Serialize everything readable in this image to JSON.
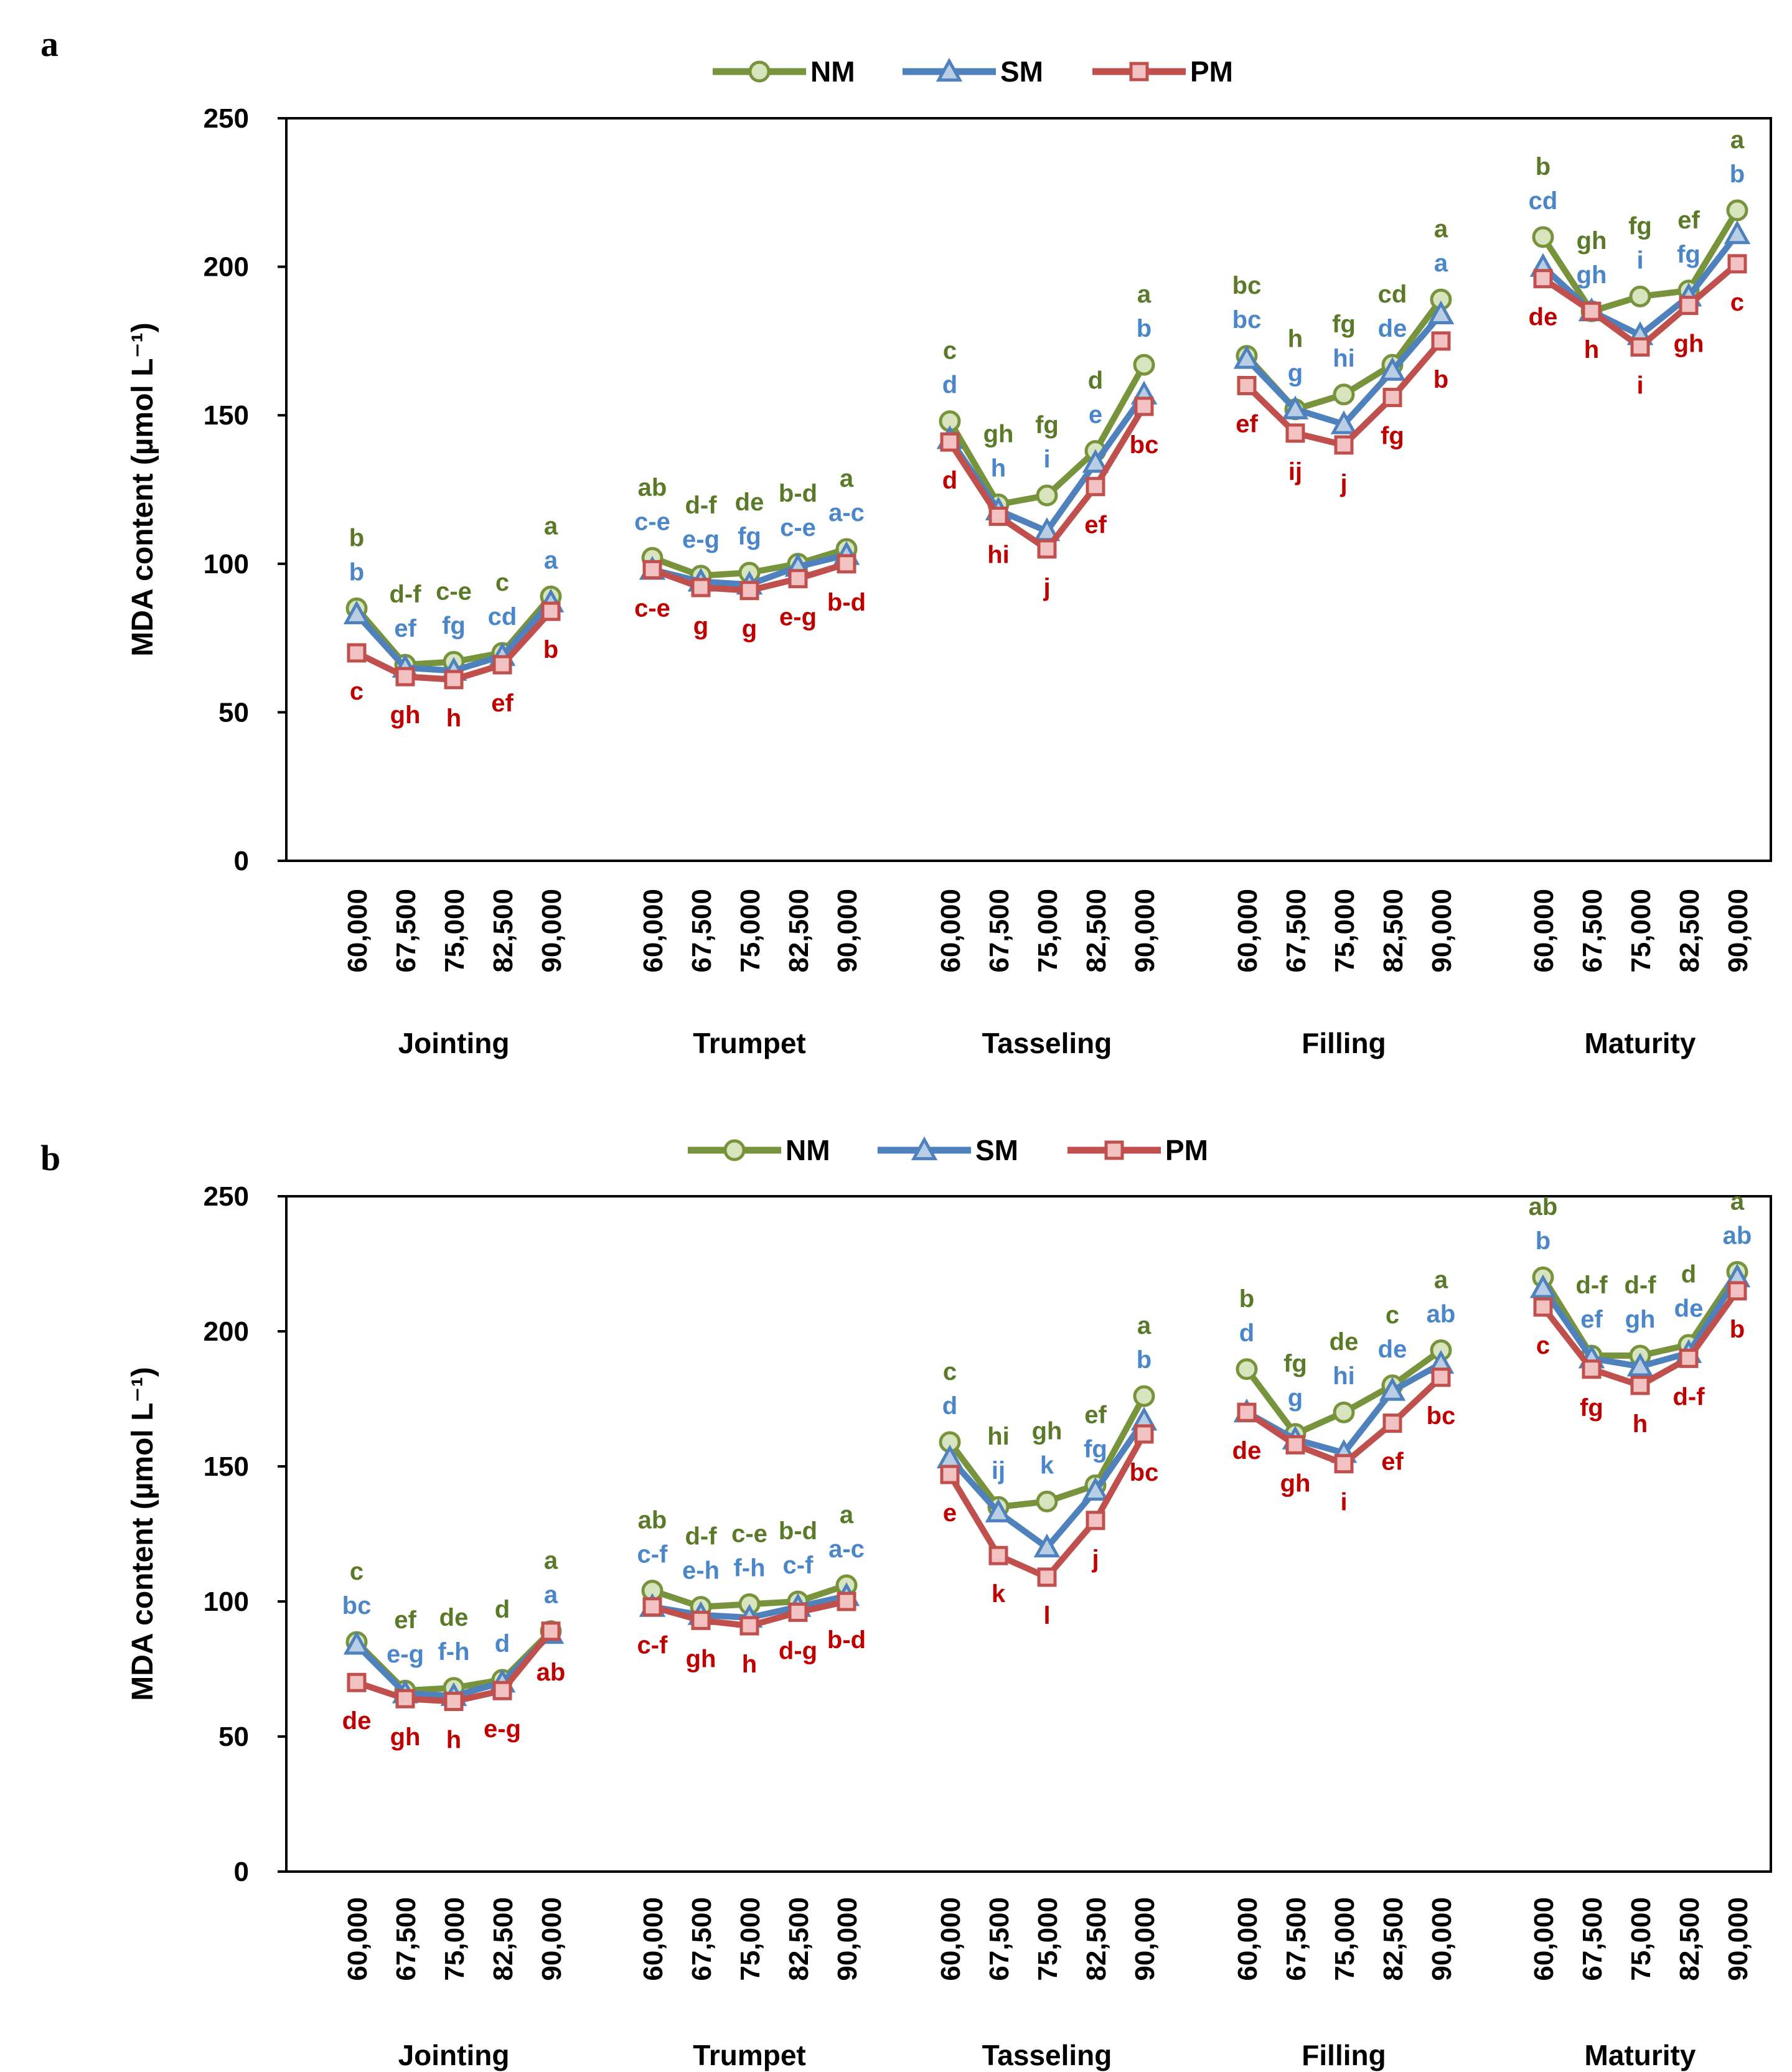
{
  "figure": {
    "colors": {
      "NM": "#77933c",
      "SM": "#4f81bd",
      "PM": "#c0504d",
      "NM_fill": "#d7e4bd",
      "SM_fill": "#b9cde5",
      "PM_fill": "#f2c2c2",
      "NM_text": "#5a7a2a",
      "SM_text": "#4a86c8",
      "PM_text": "#c00000"
    }
  },
  "chart_data": [
    {
      "panel": "a",
      "type": "line",
      "ylabel": "MDA content (µmol L⁻¹)",
      "ylim": [
        0,
        250
      ],
      "yticks": [
        0,
        50,
        100,
        150,
        200,
        250
      ],
      "groups": [
        "Jointing",
        "Trumpet",
        "Tasseling",
        "Filling",
        "Maturity"
      ],
      "categories": [
        "60,000",
        "67,500",
        "75,000",
        "82,500",
        "90,000"
      ],
      "legend": [
        "NM",
        "SM",
        "PM"
      ],
      "series": [
        {
          "name": "NM",
          "values": [
            [
              85,
              66,
              67,
              70,
              89
            ],
            [
              102,
              96,
              97,
              100,
              105
            ],
            [
              148,
              120,
              123,
              138,
              167
            ],
            [
              170,
              152,
              157,
              167,
              189
            ],
            [
              210,
              185,
              190,
              192,
              219
            ]
          ],
          "labels": [
            [
              "b",
              "d-f",
              "c-e",
              "c",
              "a"
            ],
            [
              "ab",
              "d-f",
              "de",
              "b-d",
              "a"
            ],
            [
              "c",
              "gh",
              "fg",
              "d",
              "a"
            ],
            [
              "bc",
              "h",
              "fg",
              "cd",
              "a"
            ],
            [
              "b",
              "gh",
              "fg",
              "ef",
              "a"
            ]
          ]
        },
        {
          "name": "SM",
          "values": [
            [
              83,
              65,
              64,
              69,
              87
            ],
            [
              98,
              94,
              93,
              99,
              103
            ],
            [
              142,
              118,
              111,
              134,
              157
            ],
            [
              169,
              152,
              147,
              165,
              184
            ],
            [
              200,
              185,
              177,
              190,
              211
            ]
          ],
          "labels": [
            [
              "b",
              "ef",
              "fg",
              "cd",
              "a"
            ],
            [
              "c-e",
              "e-g",
              "fg",
              "c-e",
              "a-c"
            ],
            [
              "d",
              "h",
              "i",
              "e",
              "b"
            ],
            [
              "bc",
              "g",
              "hi",
              "de",
              "a"
            ],
            [
              "cd",
              "gh",
              "i",
              "fg",
              "b"
            ]
          ]
        },
        {
          "name": "PM",
          "values": [
            [
              70,
              62,
              61,
              66,
              84
            ],
            [
              98,
              92,
              91,
              95,
              100
            ],
            [
              141,
              116,
              105,
              126,
              153
            ],
            [
              160,
              144,
              140,
              156,
              175
            ],
            [
              196,
              185,
              173,
              187,
              201
            ]
          ],
          "labels": [
            [
              "c",
              "gh",
              "h",
              "ef",
              "b"
            ],
            [
              "c-e",
              "g",
              "g",
              "e-g",
              "b-d"
            ],
            [
              "d",
              "hi",
              "j",
              "ef",
              "bc"
            ],
            [
              "ef",
              "ij",
              "j",
              "fg",
              "b"
            ],
            [
              "de",
              "h",
              "i",
              "gh",
              "c"
            ]
          ]
        }
      ]
    },
    {
      "panel": "b",
      "type": "line",
      "ylabel": "MDA content (µmol L⁻¹)",
      "ylim": [
        0,
        250
      ],
      "yticks": [
        0,
        50,
        100,
        150,
        200,
        250
      ],
      "groups": [
        "Jointing",
        "Trumpet",
        "Tasseling",
        "Filling",
        "Maturity"
      ],
      "categories": [
        "60,000",
        "67,500",
        "75,000",
        "82,500",
        "90,000"
      ],
      "legend": [
        "NM",
        "SM",
        "PM"
      ],
      "series": [
        {
          "name": "NM",
          "values": [
            [
              85,
              67,
              68,
              71,
              89
            ],
            [
              104,
              98,
              99,
              100,
              106
            ],
            [
              159,
              135,
              137,
              143,
              176
            ],
            [
              186,
              162,
              170,
              180,
              193
            ],
            [
              220,
              191,
              191,
              195,
              222
            ]
          ],
          "labels": [
            [
              "c",
              "ef",
              "de",
              "d",
              "a"
            ],
            [
              "ab",
              "d-f",
              "c-e",
              "b-d",
              "a"
            ],
            [
              "c",
              "hi",
              "gh",
              "ef",
              "a"
            ],
            [
              "b",
              "fg",
              "de",
              "c",
              "a"
            ],
            [
              "ab",
              "d-f",
              "d-f",
              "d",
              "a"
            ]
          ]
        },
        {
          "name": "SM",
          "values": [
            [
              84,
              66,
              65,
              70,
              88
            ],
            [
              98,
              95,
              94,
              98,
              102
            ],
            [
              153,
              133,
              120,
              141,
              167
            ],
            [
              170,
              160,
              155,
              178,
              188
            ],
            [
              216,
              190,
              187,
              192,
              220
            ]
          ],
          "labels": [
            [
              "bc",
              "e-g",
              "f-h",
              "d",
              "a"
            ],
            [
              "c-f",
              "e-h",
              "f-h",
              "c-f",
              "a-c"
            ],
            [
              "d",
              "ij",
              "k",
              "fg",
              "b"
            ],
            [
              "d",
              "g",
              "hi",
              "de",
              "ab"
            ],
            [
              "b",
              "ef",
              "gh",
              "de",
              "ab"
            ]
          ]
        },
        {
          "name": "PM",
          "values": [
            [
              70,
              64,
              63,
              67,
              89
            ],
            [
              98,
              93,
              91,
              96,
              100
            ],
            [
              147,
              117,
              109,
              130,
              162
            ],
            [
              170,
              158,
              151,
              166,
              183
            ],
            [
              209,
              186,
              180,
              190,
              215
            ]
          ],
          "labels": [
            [
              "de",
              "gh",
              "h",
              "e-g",
              "ab"
            ],
            [
              "c-f",
              "gh",
              "h",
              "d-g",
              "b-d"
            ],
            [
              "e",
              "k",
              "l",
              "j",
              "bc"
            ],
            [
              "de",
              "gh",
              "i",
              "ef",
              "bc"
            ],
            [
              "c",
              "fg",
              "h",
              "d-f",
              "b"
            ]
          ]
        }
      ]
    }
  ]
}
